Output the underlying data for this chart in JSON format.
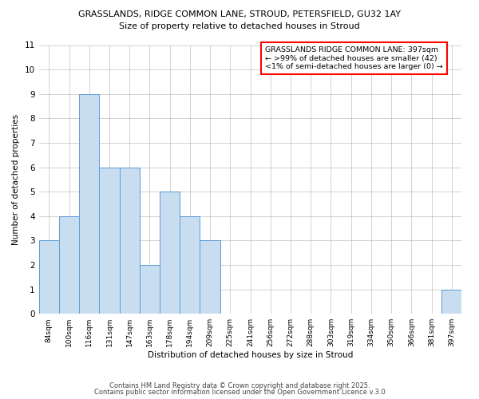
{
  "title1": "GRASSLANDS, RIDGE COMMON LANE, STROUD, PETERSFIELD, GU32 1AY",
  "title2": "Size of property relative to detached houses in Stroud",
  "xlabel": "Distribution of detached houses by size in Stroud",
  "ylabel": "Number of detached properties",
  "categories": [
    "84sqm",
    "100sqm",
    "116sqm",
    "131sqm",
    "147sqm",
    "163sqm",
    "178sqm",
    "194sqm",
    "209sqm",
    "225sqm",
    "241sqm",
    "256sqm",
    "272sqm",
    "288sqm",
    "303sqm",
    "319sqm",
    "334sqm",
    "350sqm",
    "366sqm",
    "381sqm",
    "397sqm"
  ],
  "values": [
    3,
    4,
    9,
    6,
    6,
    2,
    5,
    4,
    3,
    0,
    0,
    0,
    0,
    0,
    0,
    0,
    0,
    0,
    0,
    0,
    1
  ],
  "bar_facecolor": "#c9ddf0",
  "bar_edgecolor": "#5b9bd5",
  "ylim": [
    0,
    11
  ],
  "yticks": [
    0,
    1,
    2,
    3,
    4,
    5,
    6,
    7,
    8,
    9,
    10,
    11
  ],
  "grid_color": "#c0c0c0",
  "background_color": "#ffffff",
  "annotation_title": "GRASSLANDS RIDGE COMMON LANE: 397sqm",
  "annotation_line1": "← >99% of detached houses are smaller (42)",
  "annotation_line2": "<1% of semi-detached houses are larger (0) →",
  "annotation_box_edgecolor": "#ff0000",
  "footer1": "Contains HM Land Registry data © Crown copyright and database right 2025.",
  "footer2": "Contains public sector information licensed under the Open Government Licence v.3.0"
}
